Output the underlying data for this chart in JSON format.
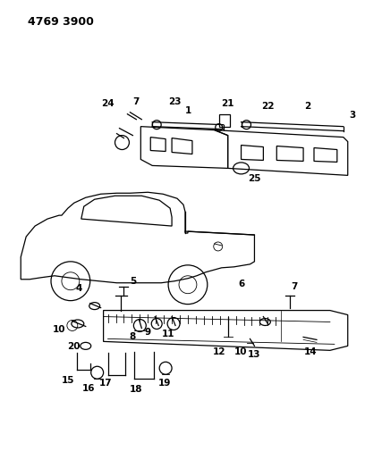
{
  "title": "4769 3900",
  "bg_color": "#ffffff",
  "line_color": "#000000",
  "fig_width": 4.08,
  "fig_height": 5.33,
  "dpi": 100
}
